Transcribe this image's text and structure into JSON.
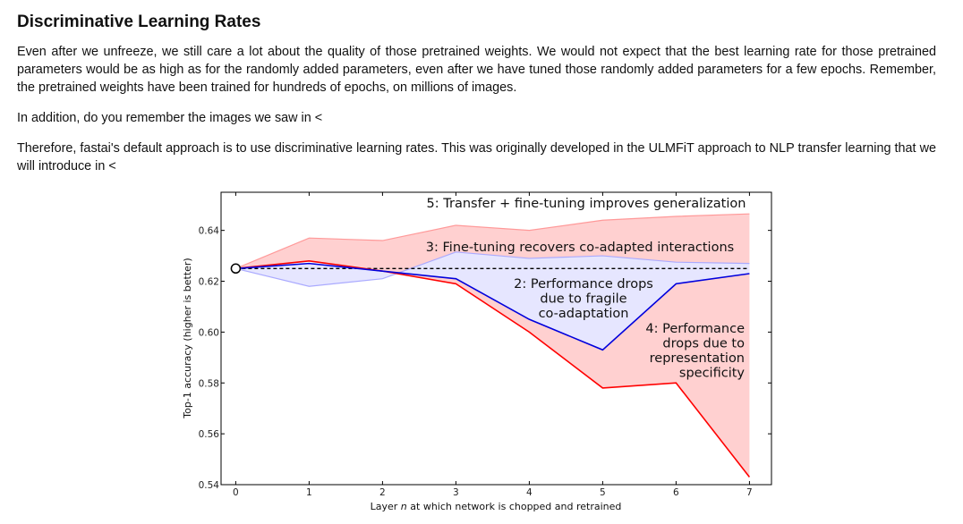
{
  "article": {
    "heading": "Discriminative Learning Rates",
    "para1": "Even after we unfreeze, we still care a lot about the quality of those pretrained weights. We would not expect that the best learning rate for those pretrained parameters would be as high as for the randomly added parameters, even after we have tuned those randomly added parameters for a few epochs. Remember, the pretrained weights have been trained for hundreds of epochs, on millions of images.",
    "para2": "In addition, do you remember the images we saw in <",
    "para3": "Therefore, fastai's default approach is to use discriminative learning rates. This was originally developed in the ULMFiT approach to NLP transfer learning that we will introduce in <"
  },
  "chart_data": {
    "type": "line",
    "xlabel": "Layer n at which network is chopped and retrained",
    "ylabel": "Top-1 accuracy (higher is better)",
    "x": [
      0,
      1,
      2,
      3,
      4,
      5,
      6,
      7
    ],
    "xticks": [
      "0",
      "1",
      "2",
      "3",
      "4",
      "5",
      "6",
      "7"
    ],
    "yticks": [
      "0.54",
      "0.56",
      "0.58",
      "0.60",
      "0.62",
      "0.64"
    ],
    "xlim": [
      -0.2,
      7.3
    ],
    "ylim": [
      0.54,
      0.655
    ],
    "baseline": 0.625,
    "series": [
      {
        "color": "#ff0000",
        "values": [
          0.625,
          0.628,
          0.624,
          0.619,
          0.6,
          0.578,
          0.58,
          0.543
        ]
      },
      {
        "color": "#0000dd",
        "values": [
          0.625,
          0.627,
          0.624,
          0.621,
          0.605,
          0.593,
          0.619,
          0.623
        ]
      }
    ],
    "bands": [
      {
        "color": "#ff9999",
        "upper": [
          0.625,
          0.637,
          0.636,
          0.642,
          0.64,
          0.644,
          0.6455,
          0.6465
        ]
      },
      {
        "color": "#aaaaff",
        "upper": [
          0.625,
          0.618,
          0.621,
          0.6315,
          0.629,
          0.63,
          0.6275,
          0.627
        ]
      }
    ],
    "annotations": [
      {
        "id": "a5",
        "lines": [
          "5: Transfer + fine-tuning improves generalization"
        ]
      },
      {
        "id": "a3",
        "lines": [
          "3: Fine-tuning recovers co-adapted interactions"
        ]
      },
      {
        "id": "a2",
        "lines": [
          "2: Performance drops",
          "due to fragile",
          "co-adaptation"
        ]
      },
      {
        "id": "a4",
        "lines": [
          "4: Performance",
          "drops due to",
          "representation",
          "specificity"
        ]
      }
    ]
  }
}
